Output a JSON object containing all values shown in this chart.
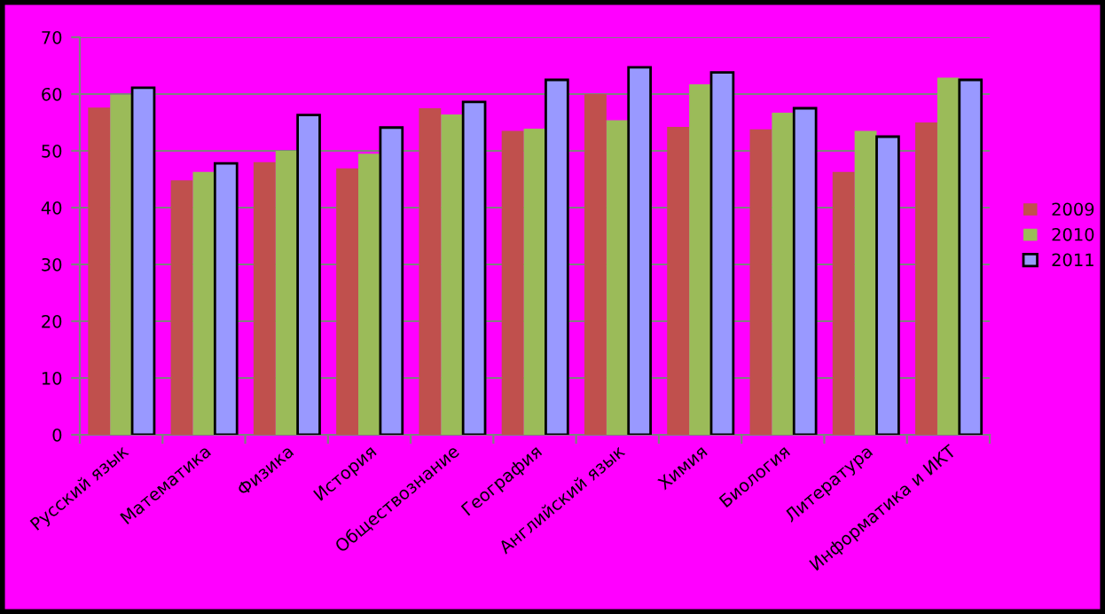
{
  "chart_data": {
    "type": "bar",
    "categories": [
      "Русский язык",
      "Математика",
      "Физика",
      "История",
      "Обществознание",
      "География",
      "Английский язык",
      "Химия",
      "Биология",
      "Литература",
      "Информатика и ИКТ"
    ],
    "series": [
      {
        "name": "2009",
        "color": "#c0504d",
        "values": [
          57.6,
          44.8,
          48.0,
          46.9,
          57.5,
          53.5,
          60.0,
          54.2,
          53.8,
          46.3,
          55.0
        ]
      },
      {
        "name": "2010",
        "color": "#9bbb59",
        "values": [
          59.9,
          46.3,
          50.0,
          49.5,
          56.4,
          53.9,
          55.4,
          61.7,
          56.7,
          53.5,
          62.9
        ]
      },
      {
        "name": "2011",
        "color": "#9999ff",
        "values": [
          61.1,
          47.8,
          56.3,
          54.1,
          58.6,
          62.5,
          64.7,
          63.8,
          57.5,
          52.5,
          62.5
        ]
      }
    ],
    "ylim": [
      0,
      70
    ],
    "yticks": [
      0,
      10,
      20,
      30,
      40,
      50,
      60,
      70
    ],
    "grid": "y",
    "legend": "right"
  }
}
